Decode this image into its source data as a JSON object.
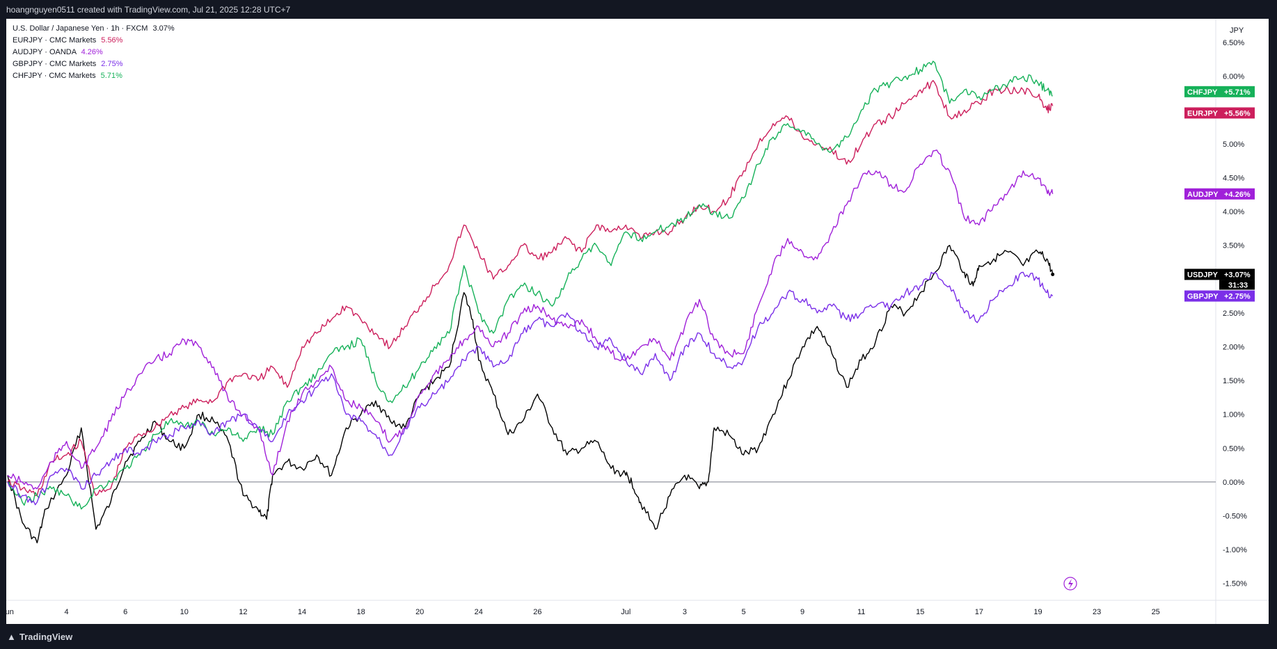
{
  "header": {
    "credit": "hoangnguyen0511 created with TradingView.com, Jul 21, 2025 12:28 UTC+7"
  },
  "footer": {
    "logo_text": "TradingView"
  },
  "legend": {
    "main": {
      "label": "U.S. Dollar / Japanese Yen · 1h · FXCM",
      "value": "3.07%"
    },
    "items": [
      {
        "label": "EURJPY · CMC Markets",
        "value": "5.56%",
        "color": "#cc1f5c"
      },
      {
        "label": "AUDJPY · OANDA",
        "value": "4.26%",
        "color": "#a020d9"
      },
      {
        "label": "GBPJPY · CMC Markets",
        "value": "2.75%",
        "color": "#7b2fe8"
      },
      {
        "label": "CHFJPY · CMC Markets",
        "value": "5.71%",
        "color": "#16b159"
      }
    ]
  },
  "chart_data": {
    "type": "line",
    "title": "U.S. Dollar / Japanese Yen · 1h · FXCM",
    "ylabel": "JPY",
    "ylim": [
      -1.75,
      6.85
    ],
    "yticks": [
      -1.5,
      -1.0,
      -0.5,
      0.0,
      0.5,
      1.0,
      1.5,
      2.0,
      2.5,
      3.0,
      3.5,
      4.0,
      4.5,
      5.0,
      5.5,
      6.0,
      6.5
    ],
    "ytick_labels": [
      "-1.50%",
      "-1.00%",
      "-0.50%",
      "0.00%",
      "0.50%",
      "1.00%",
      "1.50%",
      "2.00%",
      "2.50%",
      "3.00%",
      "3.50%",
      "4.00%",
      "4.50%",
      "5.00%",
      "5.50%",
      "6.00%",
      "6.50%"
    ],
    "x_domain": [
      0,
      55
    ],
    "xticks": [
      {
        "x": 0,
        "label": "Jun"
      },
      {
        "x": 2,
        "label": "4"
      },
      {
        "x": 4,
        "label": "6"
      },
      {
        "x": 6,
        "label": "10"
      },
      {
        "x": 8,
        "label": "12"
      },
      {
        "x": 10,
        "label": "14"
      },
      {
        "x": 12,
        "label": "18"
      },
      {
        "x": 14,
        "label": "20"
      },
      {
        "x": 16,
        "label": "24"
      },
      {
        "x": 18,
        "label": "26"
      },
      {
        "x": 21,
        "label": "Jul"
      },
      {
        "x": 23,
        "label": "3"
      },
      {
        "x": 25,
        "label": "5"
      },
      {
        "x": 27,
        "label": "9"
      },
      {
        "x": 29,
        "label": "11"
      },
      {
        "x": 31,
        "label": "15"
      },
      {
        "x": 33,
        "label": "17"
      },
      {
        "x": 35,
        "label": "19"
      },
      {
        "x": 37,
        "label": "23"
      },
      {
        "x": 39,
        "label": "25"
      }
    ],
    "series": [
      {
        "name": "USDJPY",
        "color": "#000000",
        "last": "+3.07%",
        "countdown": "31:33",
        "tag_bg": "#000000",
        "x": [
          0,
          0.5,
          1,
          1.3,
          2,
          2.5,
          3,
          3.5,
          4,
          4.5,
          5,
          5.5,
          6,
          6.5,
          7,
          7.5,
          8,
          8.5,
          8.8,
          9,
          9.5,
          10,
          10.5,
          11,
          11.5,
          12,
          12.5,
          13,
          13.5,
          14,
          14.5,
          15,
          15.5,
          15.8,
          16,
          16.5,
          17,
          17.5,
          18,
          18.5,
          19,
          19.5,
          20,
          20.5,
          21,
          21.2,
          21.5,
          22,
          22.5,
          23,
          23.5,
          23.8,
          24,
          24.5,
          25,
          25.5,
          26,
          26.5,
          27,
          27.5,
          28,
          28.5,
          29,
          29.5,
          30,
          30.5,
          31,
          31.5,
          32,
          32.5,
          32.8,
          33,
          33.5,
          34,
          34.5,
          35,
          35.3,
          35.5
        ],
        "y": [
          0.1,
          -0.6,
          -0.9,
          -0.4,
          0.1,
          0.8,
          -0.7,
          -0.3,
          0.3,
          0.6,
          0.9,
          0.6,
          0.5,
          1.0,
          0.9,
          0.6,
          -0.2,
          -0.4,
          -0.55,
          0.1,
          0.3,
          0.2,
          0.4,
          0.1,
          0.8,
          1.0,
          1.2,
          0.9,
          0.8,
          1.3,
          1.5,
          1.7,
          2.8,
          2.4,
          1.8,
          1.3,
          0.7,
          0.9,
          1.3,
          0.8,
          0.4,
          0.5,
          0.6,
          0.2,
          0.1,
          0.0,
          -0.3,
          -0.7,
          -0.2,
          0.1,
          -0.1,
          0.0,
          0.8,
          0.7,
          0.4,
          0.5,
          1.0,
          1.5,
          2.0,
          2.3,
          1.9,
          1.4,
          1.8,
          2.1,
          2.6,
          2.5,
          2.8,
          3.1,
          3.5,
          3.1,
          2.9,
          3.2,
          3.3,
          3.4,
          3.2,
          3.4,
          3.3,
          3.07
        ]
      },
      {
        "name": "EURJPY",
        "color": "#cc1f5c",
        "last": "+5.56%",
        "tag_bg": "#cc1f5c",
        "x": [
          0,
          0.5,
          1,
          1.5,
          2,
          2.5,
          3,
          3.5,
          4,
          4.5,
          5,
          5.5,
          6,
          6.5,
          7,
          7.5,
          8,
          8.5,
          9,
          9.5,
          10,
          10.5,
          11,
          11.5,
          12,
          12.5,
          13,
          13.5,
          14,
          14.5,
          15,
          15.5,
          16,
          16.5,
          17,
          17.5,
          18,
          18.5,
          19,
          19.5,
          20,
          20.5,
          21,
          21.5,
          22,
          22.5,
          23,
          23.5,
          24,
          24.5,
          25,
          25.5,
          26,
          26.5,
          27,
          27.5,
          28,
          28.5,
          29,
          29.5,
          30,
          30.5,
          31,
          31.5,
          32,
          32.5,
          33,
          33.5,
          34,
          34.5,
          35,
          35.3,
          35.5
        ],
        "y": [
          0.0,
          -0.1,
          -0.2,
          0.3,
          0.4,
          0.6,
          -0.2,
          -0.1,
          0.5,
          0.7,
          0.8,
          1.0,
          1.1,
          1.2,
          1.2,
          1.5,
          1.6,
          1.5,
          1.7,
          1.4,
          2.0,
          2.2,
          2.4,
          2.6,
          2.4,
          2.2,
          2.0,
          2.3,
          2.6,
          2.9,
          3.2,
          3.8,
          3.4,
          3.0,
          3.2,
          3.5,
          3.3,
          3.4,
          3.6,
          3.4,
          3.8,
          3.7,
          3.8,
          3.6,
          3.7,
          3.7,
          3.9,
          4.1,
          4.0,
          4.2,
          4.6,
          5.0,
          5.3,
          5.4,
          5.1,
          5.0,
          4.9,
          4.7,
          5.0,
          5.3,
          5.4,
          5.6,
          5.8,
          5.9,
          5.4,
          5.5,
          5.6,
          5.8,
          5.8,
          5.8,
          5.7,
          5.5,
          5.56
        ]
      },
      {
        "name": "CHFJPY",
        "color": "#16b159",
        "last": "+5.71%",
        "tag_bg": "#16b159",
        "x": [
          0,
          0.5,
          1,
          1.5,
          2,
          2.5,
          3,
          3.5,
          4,
          4.5,
          5,
          5.5,
          6,
          6.5,
          7,
          7.5,
          8,
          8.5,
          9,
          9.5,
          10,
          10.5,
          11,
          11.5,
          12,
          12.5,
          13,
          13.5,
          14,
          14.5,
          15,
          15.5,
          16,
          16.5,
          17,
          17.5,
          18,
          18.5,
          19,
          19.5,
          20,
          20.5,
          21,
          21.5,
          22,
          22.5,
          23,
          23.5,
          24,
          24.5,
          25,
          25.5,
          26,
          26.5,
          27,
          27.5,
          28,
          28.5,
          29,
          29.5,
          30,
          30.5,
          31,
          31.5,
          32,
          32.5,
          33,
          33.5,
          34,
          34.5,
          35,
          35.3,
          35.5
        ],
        "y": [
          0.0,
          -0.3,
          -0.2,
          -0.1,
          -0.2,
          -0.4,
          -0.1,
          0.0,
          0.2,
          0.4,
          0.7,
          0.9,
          0.8,
          0.9,
          0.7,
          0.8,
          0.6,
          0.8,
          0.7,
          1.2,
          1.4,
          1.6,
          1.9,
          2.0,
          2.1,
          1.5,
          1.2,
          1.4,
          1.7,
          2.0,
          2.2,
          3.2,
          2.5,
          2.2,
          2.7,
          2.9,
          2.8,
          2.6,
          3.0,
          3.3,
          3.5,
          3.2,
          3.7,
          3.6,
          3.7,
          3.8,
          3.9,
          4.1,
          4.0,
          3.9,
          4.2,
          4.7,
          5.1,
          5.3,
          5.2,
          5.0,
          4.9,
          5.1,
          5.5,
          5.8,
          5.9,
          6.0,
          6.1,
          6.2,
          5.6,
          5.8,
          5.7,
          5.8,
          5.9,
          6.0,
          5.9,
          5.8,
          5.71
        ]
      },
      {
        "name": "AUDJPY",
        "color": "#a020d9",
        "last": "+4.26%",
        "tag_bg": "#a020d9",
        "x": [
          0,
          0.5,
          1,
          1.5,
          2,
          2.5,
          3,
          3.5,
          4,
          4.5,
          5,
          5.5,
          6,
          6.5,
          7,
          7.5,
          8,
          8.5,
          9,
          9.5,
          10,
          10.5,
          11,
          11.5,
          12,
          12.5,
          13,
          13.5,
          14,
          14.5,
          15,
          15.5,
          16,
          16.5,
          17,
          17.5,
          18,
          18.5,
          19,
          19.5,
          20,
          20.5,
          21,
          21.5,
          22,
          22.5,
          23,
          23.5,
          24,
          24.5,
          25,
          25.5,
          26,
          26.5,
          27,
          27.5,
          28,
          28.5,
          29,
          29.5,
          30,
          30.5,
          31,
          31.5,
          32,
          32.5,
          33,
          33.5,
          34,
          34.5,
          35,
          35.3,
          35.5
        ],
        "y": [
          0.1,
          0.0,
          -0.1,
          0.3,
          0.6,
          0.2,
          0.5,
          0.9,
          1.3,
          1.6,
          1.8,
          1.9,
          2.1,
          2.0,
          1.7,
          1.2,
          1.0,
          0.8,
          0.1,
          0.9,
          1.3,
          1.5,
          1.7,
          1.2,
          1.1,
          0.9,
          0.6,
          0.8,
          1.3,
          1.6,
          1.8,
          2.1,
          2.3,
          2.0,
          2.2,
          2.5,
          2.6,
          2.4,
          2.3,
          2.4,
          2.1,
          1.9,
          1.8,
          2.0,
          2.1,
          1.8,
          2.3,
          2.7,
          2.1,
          1.9,
          1.9,
          2.6,
          3.2,
          3.6,
          3.4,
          3.3,
          3.7,
          4.1,
          4.5,
          4.6,
          4.4,
          4.3,
          4.7,
          4.9,
          4.6,
          3.9,
          3.8,
          4.1,
          4.3,
          4.6,
          4.5,
          4.3,
          4.26
        ]
      },
      {
        "name": "GBPJPY",
        "color": "#7b2fe8",
        "last": "+2.75%",
        "tag_bg": "#7b2fe8",
        "x": [
          0,
          0.5,
          1,
          1.5,
          2,
          2.5,
          3,
          3.5,
          4,
          4.5,
          5,
          5.5,
          6,
          6.5,
          7,
          7.5,
          8,
          8.5,
          9,
          9.5,
          10,
          10.5,
          11,
          11.5,
          12,
          12.5,
          13,
          13.5,
          14,
          14.5,
          15,
          15.5,
          16,
          16.5,
          17,
          17.5,
          18,
          18.5,
          19,
          19.5,
          20,
          20.5,
          21,
          21.5,
          22,
          22.5,
          23,
          23.5,
          24,
          24.5,
          25,
          25.5,
          26,
          26.5,
          27,
          27.5,
          28,
          28.5,
          29,
          29.5,
          30,
          30.5,
          31,
          31.5,
          32,
          32.5,
          33,
          33.5,
          34,
          34.5,
          35,
          35.3,
          35.5
        ],
        "y": [
          0.0,
          -0.2,
          -0.3,
          0.1,
          0.2,
          -0.1,
          0.1,
          0.3,
          0.5,
          0.4,
          0.6,
          0.7,
          0.8,
          0.9,
          0.7,
          0.9,
          1.0,
          0.8,
          0.6,
          1.0,
          1.2,
          1.4,
          1.6,
          1.0,
          0.9,
          0.7,
          0.4,
          0.8,
          1.1,
          1.3,
          1.5,
          1.8,
          2.0,
          1.7,
          1.8,
          2.2,
          2.4,
          2.3,
          2.5,
          2.2,
          2.0,
          2.1,
          1.8,
          1.6,
          1.9,
          1.5,
          2.0,
          2.2,
          1.9,
          1.7,
          1.8,
          2.3,
          2.5,
          2.8,
          2.7,
          2.5,
          2.6,
          2.4,
          2.5,
          2.6,
          2.6,
          2.8,
          2.9,
          3.1,
          2.9,
          2.5,
          2.4,
          2.7,
          2.9,
          3.1,
          3.0,
          2.8,
          2.75
        ]
      }
    ]
  }
}
